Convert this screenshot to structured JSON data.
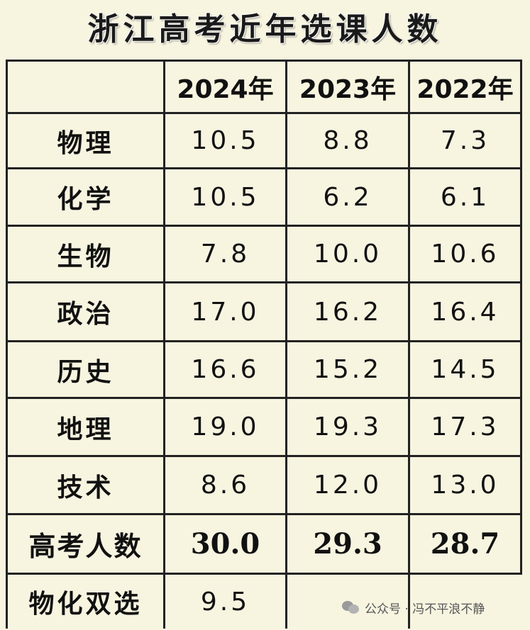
{
  "title": "浙江高考近年选课人数",
  "table": {
    "headers": [
      "",
      "2024年",
      "2023年",
      "2022年"
    ],
    "rows": [
      {
        "label": "物理",
        "values": [
          "10.5",
          "8.8",
          "7.3"
        ]
      },
      {
        "label": "化学",
        "values": [
          "10.5",
          "6.2",
          "6.1"
        ]
      },
      {
        "label": "生物",
        "values": [
          "7.8",
          "10.0",
          "10.6"
        ]
      },
      {
        "label": "政治",
        "values": [
          "17.0",
          "16.2",
          "16.4"
        ]
      },
      {
        "label": "历史",
        "values": [
          "16.6",
          "15.2",
          "14.5"
        ]
      },
      {
        "label": "地理",
        "values": [
          "19.0",
          "19.3",
          "17.3"
        ]
      },
      {
        "label": "技术",
        "values": [
          "8.6",
          "12.0",
          "13.0"
        ]
      }
    ],
    "total": {
      "label": "高考人数",
      "values": [
        "30.0",
        "29.3",
        "28.7"
      ]
    },
    "last": {
      "label": "物化双选",
      "values": [
        "9.5",
        "",
        ""
      ]
    }
  },
  "watermark": {
    "icon": "wechat-icon",
    "text": "公众号 · 冯不平浪不静"
  }
}
